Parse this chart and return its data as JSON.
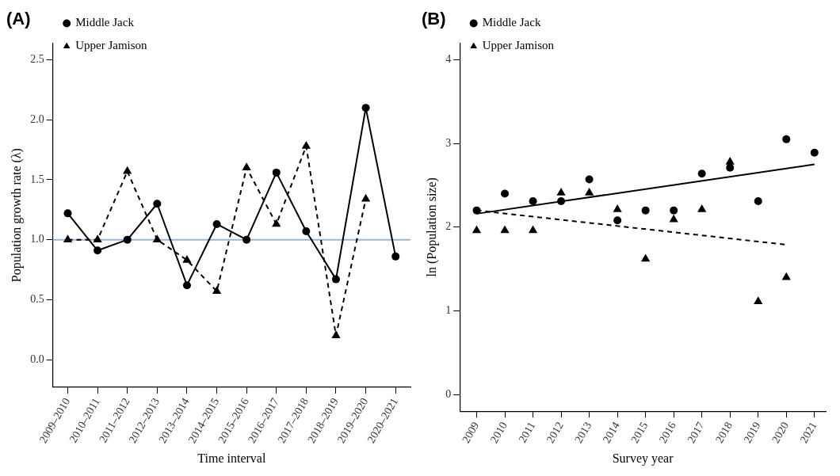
{
  "chart_data": [
    {
      "type": "line",
      "title": "(A)",
      "xlabel": "Time interval",
      "ylabel": "Population growth rate (λ)",
      "categories": [
        "2009–2010",
        "2010–2011",
        "2011–2012",
        "2012–2013",
        "2013–2014",
        "2014–2015",
        "2015–2016",
        "2016–2017",
        "2017–2018",
        "2018–2019",
        "2019–2020",
        "2020–2021"
      ],
      "series": [
        {
          "name": "Middle Jack",
          "color": "#000000",
          "marker": "circle",
          "line_style": "solid",
          "values": [
            1.22,
            0.91,
            1.0,
            1.3,
            0.62,
            1.13,
            1.0,
            1.56,
            1.07,
            0.67,
            2.1,
            0.86
          ]
        },
        {
          "name": "Upper Jamison",
          "color": "#000000",
          "marker": "triangle",
          "line_style": "dashed",
          "values": [
            1.0,
            1.0,
            1.57,
            1.0,
            0.83,
            0.57,
            1.6,
            1.13,
            1.78,
            0.2,
            1.34,
            null
          ]
        }
      ],
      "ylim": [
        -0.23,
        2.64
      ],
      "yticks": [
        {
          "value": 0,
          "label": "0.0"
        },
        {
          "value": 0.5,
          "label": "0.5"
        },
        {
          "value": 1,
          "label": "1.0"
        },
        {
          "value": 1.5,
          "label": "1.5"
        },
        {
          "value": 2,
          "label": "2.0"
        },
        {
          "value": 2.5,
          "label": "2.5"
        }
      ],
      "ref_lines": [
        {
          "axis": "y",
          "value": 1,
          "color": "#9ab5d6"
        }
      ],
      "legend": "top left"
    },
    {
      "type": "scatter",
      "title": "(B)",
      "xlabel": "Survey year",
      "ylabel": "ln (Population size)",
      "x": [
        2009,
        2010,
        2011,
        2012,
        2013,
        2014,
        2015,
        2016,
        2017,
        2018,
        2019,
        2020,
        2021
      ],
      "series": [
        {
          "name": "Middle Jack",
          "color": "#000000",
          "marker": "circle",
          "line_style": "solid",
          "values": [
            2.2,
            2.4,
            2.31,
            2.31,
            2.57,
            2.08,
            2.2,
            2.2,
            2.64,
            2.71,
            2.31,
            3.05,
            2.89
          ]
        },
        {
          "name": "Upper Jamison",
          "color": "#000000",
          "marker": "triangle",
          "line_style": "dashed",
          "values": [
            1.96,
            1.96,
            1.96,
            2.41,
            2.41,
            2.21,
            1.62,
            2.09,
            2.21,
            2.78,
            1.11,
            1.4,
            null
          ]
        },
        {
          "type": "line",
          "color": "#000000",
          "marker": "none",
          "line_style": "solid",
          "x": [
            2009,
            2021
          ],
          "values": [
            2.16,
            2.75
          ]
        },
        {
          "type": "line",
          "color": "#000000",
          "marker": "none",
          "line_style": "dashed",
          "x": [
            2009,
            2020
          ],
          "values": [
            2.2,
            1.79
          ]
        }
      ],
      "xlim": [
        2008.4,
        2021.4
      ],
      "xticks": [
        2009,
        2010,
        2011,
        2012,
        2013,
        2014,
        2015,
        2016,
        2017,
        2018,
        2019,
        2020,
        2021
      ],
      "ylim": [
        -0.2,
        4.2
      ],
      "yticks": [
        0,
        1,
        2,
        3,
        4
      ],
      "legend": "top left"
    }
  ]
}
